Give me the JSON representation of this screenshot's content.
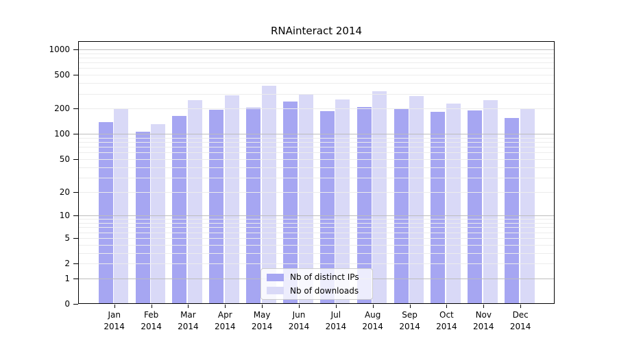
{
  "chart_data": {
    "type": "bar",
    "title": "RNAinteract 2014",
    "categories": [
      "Jan",
      "Feb",
      "Mar",
      "Apr",
      "May",
      "Jun",
      "Jul",
      "Aug",
      "Sep",
      "Oct",
      "Nov",
      "Dec"
    ],
    "category_year": "2014",
    "series": [
      {
        "name": "Nb of distinct IPs",
        "color": "#a6a6f2",
        "values": [
          138,
          107,
          165,
          195,
          203,
          243,
          187,
          210,
          202,
          184,
          191,
          155
        ]
      },
      {
        "name": "Nb of downloads",
        "color": "#d9d9f7",
        "values": [
          196,
          130,
          251,
          286,
          374,
          300,
          255,
          319,
          281,
          229,
          253,
          201
        ]
      }
    ],
    "yscale": "log1p",
    "yticks": [
      0,
      1,
      2,
      5,
      10,
      20,
      50,
      100,
      200,
      500,
      1000
    ],
    "ylim": [
      0,
      1250
    ],
    "xlabel": "",
    "ylabel": "",
    "grid": "horizontal-log-minors",
    "legend_position": "inside-bottom-center"
  }
}
